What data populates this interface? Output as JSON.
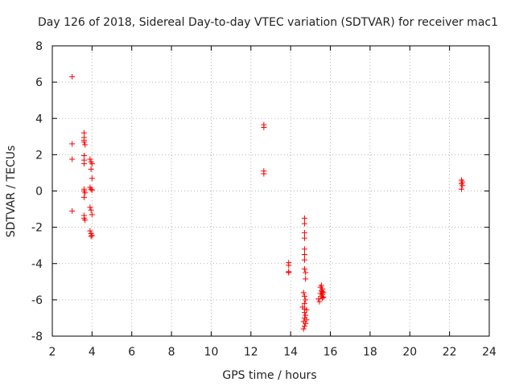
{
  "chart_data": {
    "type": "scatter",
    "title": "Day 126 of 2018, Sidereal Day-to-day VTEC variation (SDTVAR) for receiver mac1",
    "xlabel": "GPS time / hours",
    "ylabel": "SDTVAR / TECUs",
    "xlim": [
      2,
      24
    ],
    "ylim": [
      -8,
      8
    ],
    "xticks": [
      2,
      4,
      6,
      8,
      10,
      12,
      14,
      16,
      18,
      20,
      22,
      24
    ],
    "yticks": [
      -8,
      -6,
      -4,
      -2,
      0,
      2,
      4,
      6,
      8
    ],
    "grid": true,
    "marker": "+",
    "color": "#ff0000",
    "series": [
      {
        "name": "SDTVAR",
        "points": [
          [
            3.0,
            6.3
          ],
          [
            3.0,
            2.6
          ],
          [
            3.0,
            1.75
          ],
          [
            3.0,
            -1.1
          ],
          [
            3.6,
            3.2
          ],
          [
            3.6,
            2.95
          ],
          [
            3.6,
            2.8
          ],
          [
            3.6,
            2.7
          ],
          [
            3.65,
            2.55
          ],
          [
            3.6,
            1.95
          ],
          [
            3.6,
            1.7
          ],
          [
            3.6,
            1.5
          ],
          [
            3.6,
            0.1
          ],
          [
            3.6,
            0.0
          ],
          [
            3.65,
            -0.1
          ],
          [
            3.6,
            -0.35
          ],
          [
            3.6,
            -1.35
          ],
          [
            3.6,
            -1.5
          ],
          [
            3.65,
            -1.6
          ],
          [
            3.9,
            1.75
          ],
          [
            3.95,
            1.6
          ],
          [
            4.0,
            1.5
          ],
          [
            3.95,
            1.2
          ],
          [
            4.0,
            0.7
          ],
          [
            3.9,
            0.2
          ],
          [
            3.95,
            0.1
          ],
          [
            4.0,
            0.05
          ],
          [
            3.9,
            -0.9
          ],
          [
            3.95,
            -1.05
          ],
          [
            4.0,
            -1.3
          ],
          [
            3.9,
            -2.2
          ],
          [
            3.95,
            -2.35
          ],
          [
            4.0,
            -2.45
          ],
          [
            3.95,
            -2.5
          ],
          [
            12.65,
            3.65
          ],
          [
            12.65,
            3.5
          ],
          [
            12.65,
            1.1
          ],
          [
            12.65,
            0.95
          ],
          [
            13.9,
            -3.95
          ],
          [
            13.9,
            -4.1
          ],
          [
            13.9,
            -4.45
          ],
          [
            13.9,
            -4.5
          ],
          [
            14.7,
            -1.5
          ],
          [
            14.7,
            -1.8
          ],
          [
            14.7,
            -2.3
          ],
          [
            14.7,
            -2.6
          ],
          [
            14.7,
            -3.2
          ],
          [
            14.7,
            -3.5
          ],
          [
            14.7,
            -3.8
          ],
          [
            14.7,
            -4.3
          ],
          [
            14.75,
            -4.5
          ],
          [
            14.75,
            -4.85
          ],
          [
            14.65,
            -5.6
          ],
          [
            14.7,
            -5.8
          ],
          [
            14.75,
            -6.0
          ],
          [
            14.7,
            -6.2
          ],
          [
            14.6,
            -6.4
          ],
          [
            14.7,
            -6.5
          ],
          [
            14.8,
            -6.55
          ],
          [
            14.7,
            -6.7
          ],
          [
            14.75,
            -6.85
          ],
          [
            14.7,
            -7.0
          ],
          [
            14.8,
            -7.1
          ],
          [
            14.65,
            -7.2
          ],
          [
            14.75,
            -7.3
          ],
          [
            14.7,
            -7.45
          ],
          [
            14.65,
            -7.6
          ],
          [
            15.4,
            -5.95
          ],
          [
            15.45,
            -6.1
          ],
          [
            15.5,
            -5.3
          ],
          [
            15.55,
            -5.2
          ],
          [
            15.6,
            -5.4
          ],
          [
            15.55,
            -5.5
          ],
          [
            15.6,
            -5.55
          ],
          [
            15.65,
            -5.6
          ],
          [
            15.5,
            -5.65
          ],
          [
            15.6,
            -5.7
          ],
          [
            15.55,
            -5.8
          ],
          [
            15.65,
            -5.85
          ],
          [
            15.6,
            -5.9
          ],
          [
            22.6,
            0.6
          ],
          [
            22.65,
            0.5
          ],
          [
            22.6,
            0.4
          ],
          [
            22.65,
            0.3
          ],
          [
            22.6,
            0.1
          ]
        ]
      }
    ]
  }
}
